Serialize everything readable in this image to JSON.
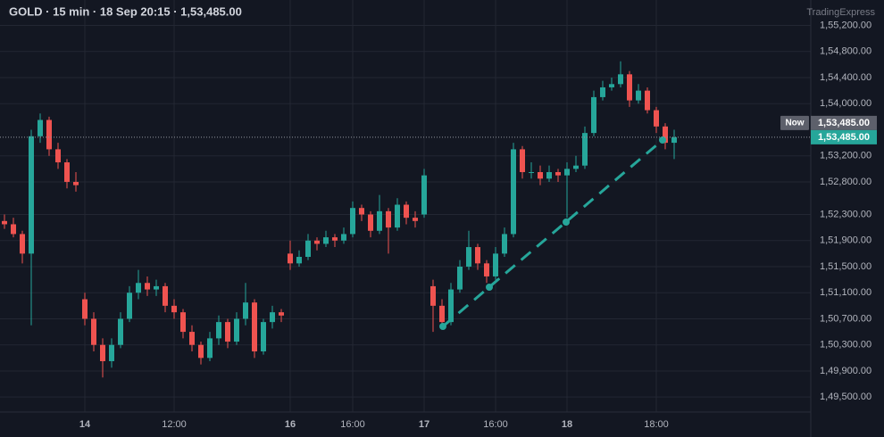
{
  "chart_data": {
    "type": "candlestick",
    "title": "GOLD · 15 min · 18 Sep 20:15 · 1,53,485.00",
    "brand": "TradingExpress",
    "up_color": "#26a69a",
    "down_color": "#ef5350",
    "grid": true,
    "ylim": [
      149270,
      155590
    ],
    "yticks": [
      {
        "value": 149500,
        "label": "1,49,500.00"
      },
      {
        "value": 149900,
        "label": "1,49,900.00"
      },
      {
        "value": 150300,
        "label": "1,50,300.00"
      },
      {
        "value": 150700,
        "label": "1,50,700.00"
      },
      {
        "value": 151100,
        "label": "1,51,100.00"
      },
      {
        "value": 151500,
        "label": "1,51,500.00"
      },
      {
        "value": 151900,
        "label": "1,51,900.00"
      },
      {
        "value": 152300,
        "label": "1,52,300.00"
      },
      {
        "value": 152800,
        "label": "1,52,800.00"
      },
      {
        "value": 153200,
        "label": "1,53,200.00"
      },
      {
        "value": 154000,
        "label": "1,54,000.00"
      },
      {
        "value": 154400,
        "label": "1,54,400.00"
      },
      {
        "value": 154800,
        "label": "1,54,800.00"
      },
      {
        "value": 155200,
        "label": "1,55,200.00"
      }
    ],
    "now_label": "Now",
    "last_price": {
      "value": 153485,
      "label": "1,53,485.00"
    },
    "categories": [
      null,
      null,
      null,
      null,
      null,
      null,
      null,
      null,
      null,
      "14",
      null,
      null,
      null,
      null,
      null,
      null,
      null,
      null,
      null,
      "12:00",
      null,
      null,
      null,
      null,
      null,
      null,
      null,
      null,
      null,
      null,
      null,
      null,
      "16",
      null,
      null,
      null,
      null,
      null,
      null,
      "16:00",
      null,
      null,
      null,
      null,
      null,
      null,
      null,
      "17",
      null,
      null,
      null,
      null,
      null,
      null,
      null,
      "16:00",
      null,
      null,
      null,
      null,
      null,
      null,
      null,
      "18",
      null,
      null,
      null,
      null,
      null,
      null,
      null,
      null,
      null,
      "18:00",
      null,
      null
    ],
    "candles": [
      [
        152200,
        152300,
        152080,
        152150
      ],
      [
        152150,
        152250,
        151950,
        152000
      ],
      [
        152000,
        152050,
        151550,
        151700
      ],
      [
        151700,
        153600,
        150600,
        153500
      ],
      [
        153500,
        153850,
        153400,
        153750
      ],
      [
        153750,
        153800,
        153200,
        153300
      ],
      [
        153300,
        153400,
        153000,
        153100
      ],
      [
        153100,
        153150,
        152700,
        152800
      ],
      [
        152800,
        152950,
        152650,
        152750
      ],
      [
        151000,
        151100,
        150600,
        150700
      ],
      [
        150700,
        150800,
        150200,
        150300
      ],
      [
        150300,
        150400,
        149800,
        150050
      ],
      [
        150050,
        150400,
        149950,
        150300
      ],
      [
        150300,
        150800,
        150250,
        150700
      ],
      [
        150700,
        151200,
        150650,
        151100
      ],
      [
        151100,
        151450,
        151000,
        151250
      ],
      [
        151250,
        151350,
        151050,
        151150
      ],
      [
        151150,
        151300,
        151050,
        151200
      ],
      [
        151200,
        151250,
        150800,
        150900
      ],
      [
        150900,
        151000,
        150700,
        150800
      ],
      [
        150800,
        150850,
        150400,
        150500
      ],
      [
        150500,
        150600,
        150200,
        150300
      ],
      [
        150300,
        150350,
        150000,
        150100
      ],
      [
        150100,
        150500,
        150050,
        150400
      ],
      [
        150400,
        150750,
        150300,
        150650
      ],
      [
        150650,
        150700,
        150250,
        150350
      ],
      [
        150350,
        150800,
        150300,
        150700
      ],
      [
        150700,
        151250,
        150600,
        150950
      ],
      [
        150950,
        151000,
        150100,
        150200
      ],
      [
        150200,
        150700,
        150150,
        150650
      ],
      [
        150650,
        150900,
        150550,
        150800
      ],
      [
        150800,
        150850,
        150650,
        150750
      ],
      [
        151700,
        151900,
        151450,
        151550
      ],
      [
        151550,
        151750,
        151500,
        151650
      ],
      [
        151650,
        152000,
        151600,
        151900
      ],
      [
        151900,
        151950,
        151750,
        151850
      ],
      [
        151850,
        152050,
        151800,
        151950
      ],
      [
        151950,
        152000,
        151800,
        151900
      ],
      [
        151900,
        152100,
        151850,
        152000
      ],
      [
        152000,
        152500,
        151950,
        152400
      ],
      [
        152400,
        152450,
        152200,
        152300
      ],
      [
        152300,
        152350,
        151950,
        152050
      ],
      [
        152050,
        152600,
        152000,
        152350
      ],
      [
        152350,
        152400,
        151700,
        152100
      ],
      [
        152100,
        152550,
        152050,
        152450
      ],
      [
        152450,
        152500,
        152150,
        152250
      ],
      [
        152250,
        152350,
        152100,
        152200
      ],
      [
        152300,
        153000,
        152250,
        152900
      ],
      [
        151200,
        151300,
        150500,
        150900
      ],
      [
        150900,
        151000,
        150550,
        150650
      ],
      [
        150650,
        151250,
        150600,
        151150
      ],
      [
        151150,
        151600,
        151100,
        151500
      ],
      [
        151500,
        152050,
        151450,
        151800
      ],
      [
        151800,
        151850,
        151450,
        151550
      ],
      [
        151550,
        151600,
        151250,
        151350
      ],
      [
        151350,
        151800,
        151300,
        151700
      ],
      [
        151700,
        152100,
        151650,
        152000
      ],
      [
        152000,
        153400,
        151950,
        153300
      ],
      [
        153300,
        153350,
        152850,
        152950
      ],
      [
        152950,
        153100,
        152850,
        152950
      ],
      [
        152950,
        153050,
        152750,
        152850
      ],
      [
        152850,
        153050,
        152800,
        152950
      ],
      [
        152950,
        153000,
        152800,
        152900
      ],
      [
        152900,
        153100,
        152250,
        153000
      ],
      [
        153000,
        153200,
        152950,
        153050
      ],
      [
        153050,
        153650,
        153000,
        153550
      ],
      [
        153550,
        154200,
        153500,
        154100
      ],
      [
        154100,
        154350,
        154050,
        154250
      ],
      [
        154250,
        154400,
        154200,
        154300
      ],
      [
        154300,
        154650,
        154250,
        154450
      ],
      [
        154450,
        154500,
        153950,
        154050
      ],
      [
        154050,
        154300,
        154000,
        154200
      ],
      [
        154200,
        154250,
        153850,
        153900
      ],
      [
        153900,
        153950,
        153550,
        153650
      ],
      [
        153650,
        153700,
        153300,
        153400
      ],
      [
        153400,
        153600,
        153150,
        153485
      ]
    ]
  }
}
